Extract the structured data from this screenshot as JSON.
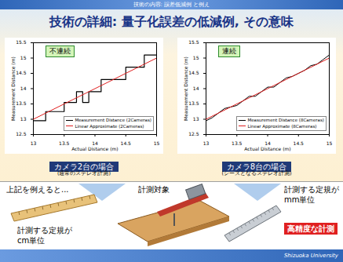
{
  "header": {
    "bar_text": "技術の内容: 誤差低減例 と例え",
    "title": "技術の詳細: 量子化誤差の低減例, その意味"
  },
  "chart_data": [
    {
      "type": "line",
      "x_label": "Actual Distance (m)",
      "y_label": "Measurement Distance (m)",
      "xlim": [
        13,
        15
      ],
      "ylim": [
        12.5,
        15.5
      ],
      "xticks": [
        13,
        13.5,
        14,
        14.5,
        15
      ],
      "yticks": [
        12.5,
        13,
        13.5,
        14,
        14.5,
        15,
        15.5
      ],
      "grid": false,
      "legend": "lower right",
      "annotation": "不連続",
      "caption": "カメラ2台の場合",
      "sub_caption": "(通常のステレオ計測)",
      "series": [
        {
          "name": "Measurement Distance (2Cameras)",
          "color": "#000000",
          "line_style": "step",
          "x": [
            13,
            13.1,
            13.2,
            13.3,
            13.4,
            13.5,
            13.6,
            13.7,
            13.8,
            13.9,
            14,
            14.1,
            14.2,
            14.3,
            14.4,
            14.5,
            14.6,
            14.7,
            14.8,
            14.9,
            15
          ],
          "values": [
            12.95,
            12.95,
            13.25,
            13.25,
            13.25,
            13.55,
            13.55,
            13.9,
            13.55,
            13.9,
            13.9,
            14.3,
            14.3,
            14.3,
            14.3,
            14.7,
            14.7,
            14.7,
            15.1,
            15.1,
            15.1
          ]
        },
        {
          "name": "Linear Approximate (2Cameras)",
          "color": "#e02020",
          "line_style": "solid",
          "x": [
            13,
            15
          ],
          "values": [
            13,
            15
          ]
        }
      ]
    },
    {
      "type": "line",
      "x_label": "Actual Distance (m)",
      "y_label": "Measurement Distance (m)",
      "xlim": [
        13,
        15
      ],
      "ylim": [
        12.5,
        15.5
      ],
      "xticks": [
        13,
        13.5,
        14,
        14.5,
        15
      ],
      "yticks": [
        12.5,
        13,
        13.5,
        14,
        14.5,
        15,
        15.5
      ],
      "grid": false,
      "legend": "lower right",
      "annotation": "連続",
      "caption": "カメラ8台の場合",
      "sub_caption": "(シーズとなるステレオ計測)",
      "series": [
        {
          "name": "Measurement Distance (8Cameras)",
          "color": "#000000",
          "line_style": "solid",
          "x": [
            13,
            13.1,
            13.2,
            13.3,
            13.4,
            13.5,
            13.6,
            13.7,
            13.8,
            13.9,
            14,
            14.1,
            14.2,
            14.3,
            14.4,
            14.5,
            14.6,
            14.7,
            14.8,
            14.9,
            15
          ],
          "values": [
            12.95,
            13.05,
            13.2,
            13.35,
            13.4,
            13.45,
            13.6,
            13.75,
            13.75,
            13.9,
            14.05,
            14.05,
            14.2,
            14.35,
            14.4,
            14.5,
            14.6,
            14.75,
            14.8,
            14.95,
            15.1
          ]
        },
        {
          "name": "Linear Approximate (8Cameras)",
          "color": "#e02020",
          "line_style": "solid",
          "x": [
            13,
            15
          ],
          "values": [
            13,
            15
          ]
        }
      ]
    }
  ],
  "illustration": {
    "intro": "上記を例えると...",
    "object": "計測対象",
    "left_ruler": [
      "計測する定規が",
      "cm単位"
    ],
    "right_ruler": [
      "計測する定規が",
      "mm単位"
    ],
    "badge": "高精度な計測"
  },
  "footer": "Shizuoka University"
}
